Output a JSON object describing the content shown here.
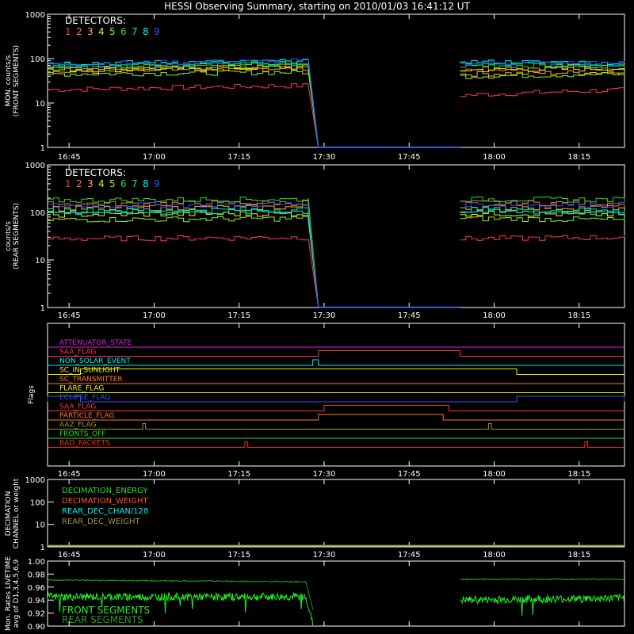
{
  "title": "HESSI Observing Summary, starting on 2010/01/03 16:41:12 UT",
  "x_ticks": [
    "16:45",
    "17:00",
    "17:15",
    "17:30",
    "17:45",
    "18:00",
    "18:15"
  ],
  "colors": {
    "background": "#000000",
    "axes": "#ffffff",
    "detectors": [
      "#ff3355",
      "#ff7722",
      "#ffaa33",
      "#eeee00",
      "#88ee22",
      "#22dd22",
      "#00ee99",
      "#00eeee",
      "#3355ff"
    ]
  },
  "panels": {
    "front": {
      "ylabel_lines": [
        "MON. counts/s",
        "(FRONT SEGMENTS)"
      ],
      "yticks": [
        "1000",
        "100",
        "10",
        "1"
      ],
      "legend_title": "DETECTORS:",
      "legend_numbers": [
        "1",
        "2",
        "3",
        "4",
        "5",
        "6",
        "7",
        "8",
        "9"
      ]
    },
    "rear": {
      "ylabel_lines": [
        "counts/s",
        "(REAR SEGMENTS)"
      ],
      "yticks": [
        "1000",
        "100",
        "10",
        "1"
      ],
      "legend_title": "DETECTORS:",
      "legend_numbers": [
        "1",
        "2",
        "3",
        "4",
        "5",
        "6",
        "7",
        "8",
        "9"
      ]
    },
    "flags": {
      "ylabel": "Flags",
      "items": [
        {
          "label": "ATTENUATOR_STATE",
          "color": "#dd22dd"
        },
        {
          "label": "SAA_FLAG",
          "color": "#ff3355"
        },
        {
          "label": "NON_SOLAR_EVENT",
          "color": "#00eeee"
        },
        {
          "label": "SC_IN_SUNLIGHT",
          "color": "#eeee00"
        },
        {
          "label": "SC_TRANSMITTER",
          "color": "#ff7722"
        },
        {
          "label": "FLARE_FLAG",
          "color": "#eeee00"
        },
        {
          "label": "ECLIPSE_FLAG",
          "color": "#3355ff"
        },
        {
          "label": "SAA_FLAG",
          "color": "#ff3333"
        },
        {
          "label": "PARTICLE_FLAG",
          "color": "#ff7722"
        },
        {
          "label": "AAZ_FLAG",
          "color": "#999933"
        },
        {
          "label": "FRONTS_OFF",
          "color": "#22dd22"
        },
        {
          "label": "BAD_PACKETS",
          "color": "#ff2222"
        }
      ]
    },
    "decimation": {
      "ylabel_lines": [
        "DECIMATION",
        "CHANNEL or weight"
      ],
      "yticks": [
        "1000",
        "100",
        "10",
        "1"
      ],
      "legend": [
        {
          "label": "DECIMATION_ENERGY",
          "color": "#22dd22"
        },
        {
          "label": "DECIMATION_WEIGHT",
          "color": "#ff5522"
        },
        {
          "label": "REAR_DEC_CHAN/128",
          "color": "#00eeee"
        },
        {
          "label": "REAR_DEC_WEIGHT",
          "color": "#999933"
        }
      ]
    },
    "livetime": {
      "ylabel_lines": [
        "Mon. Rates LIVETIME",
        "avg of D1,3,4,5,6,9"
      ],
      "yticks": [
        "1.00",
        "0.98",
        "0.96",
        "0.94",
        "0.92",
        "0.90"
      ],
      "legend": [
        {
          "label": "FRONT SEGMENTS",
          "color": "#22ee22"
        },
        {
          "label": "REAR SEGMENTS",
          "color": "#229922"
        }
      ]
    }
  },
  "chart_data": [
    {
      "type": "line",
      "x": [
        "16:41",
        "17:28",
        "17:29",
        "17:54",
        "18:22"
      ],
      "ylim": [
        1,
        1000
      ],
      "yscale": "log",
      "series": [
        {
          "name": "1",
          "values": [
            20,
            25,
            1,
            15,
            20
          ]
        },
        {
          "name": "2",
          "values": [
            60,
            70,
            1,
            60,
            65
          ]
        },
        {
          "name": "3",
          "values": [
            50,
            60,
            1,
            45,
            50
          ]
        },
        {
          "name": "4",
          "values": [
            55,
            65,
            1,
            55,
            60
          ]
        },
        {
          "name": "5",
          "values": [
            45,
            50,
            1,
            40,
            45
          ]
        },
        {
          "name": "6",
          "values": [
            65,
            75,
            1,
            70,
            70
          ]
        },
        {
          "name": "7",
          "values": [
            70,
            80,
            1,
            75,
            75
          ]
        },
        {
          "name": "8",
          "values": [
            80,
            85,
            1,
            85,
            80
          ]
        },
        {
          "name": "9",
          "values": [
            75,
            90,
            1,
            80,
            80
          ]
        }
      ]
    },
    {
      "type": "line",
      "x": [
        "16:41",
        "17:28",
        "17:29",
        "17:54",
        "18:22"
      ],
      "ylim": [
        1,
        1000
      ],
      "yscale": "log",
      "series": [
        {
          "name": "1",
          "values": [
            28,
            30,
            1,
            28,
            30
          ]
        },
        {
          "name": "2",
          "values": [
            150,
            160,
            1,
            160,
            155
          ]
        },
        {
          "name": "3",
          "values": [
            120,
            130,
            1,
            130,
            125
          ]
        },
        {
          "name": "4",
          "values": [
            90,
            95,
            1,
            95,
            90
          ]
        },
        {
          "name": "5",
          "values": [
            70,
            75,
            1,
            75,
            70
          ]
        },
        {
          "name": "6",
          "values": [
            180,
            190,
            1,
            190,
            185
          ]
        },
        {
          "name": "7",
          "values": [
            110,
            115,
            1,
            115,
            110
          ]
        },
        {
          "name": "8",
          "values": [
            100,
            105,
            1,
            105,
            100
          ]
        },
        {
          "name": "9",
          "values": [
            140,
            150,
            1,
            150,
            145
          ]
        }
      ]
    },
    {
      "type": "line",
      "x_range": [
        "16:41",
        "18:23"
      ],
      "series": [
        {
          "name": "ATTENUATOR_STATE",
          "on": []
        },
        {
          "name": "SAA_FLAG",
          "on": [
            [
              "17:29",
              "17:54"
            ]
          ]
        },
        {
          "name": "NON_SOLAR_EVENT",
          "on": [
            [
              "17:28",
              "17:29"
            ]
          ]
        },
        {
          "name": "SC_IN_SUNLIGHT",
          "on": [
            [
              "16:47",
              "18:04"
            ]
          ]
        },
        {
          "name": "SC_TRANSMITTER",
          "on": []
        },
        {
          "name": "FLARE_FLAG",
          "on": []
        },
        {
          "name": "ECLIPSE_FLAG",
          "on": [
            [
              "16:41",
              "16:47"
            ],
            [
              "18:04",
              "18:23"
            ]
          ]
        },
        {
          "name": "SAA_FLAG",
          "on": [
            [
              "17:30",
              "17:52"
            ]
          ]
        },
        {
          "name": "PARTICLE_FLAG",
          "on": [
            [
              "17:29",
              "17:51"
            ]
          ]
        },
        {
          "name": "AAZ_FLAG",
          "on": [
            [
              "16:58",
              "16:58"
            ],
            [
              "17:59",
              "17:59"
            ]
          ]
        },
        {
          "name": "FRONTS_OFF",
          "on": []
        },
        {
          "name": "BAD_PACKETS",
          "on": [
            [
              "17:16",
              "17:16"
            ],
            [
              "18:16",
              "18:16"
            ]
          ]
        }
      ]
    },
    {
      "type": "line",
      "x_range": [
        "16:41",
        "18:23"
      ],
      "ylim": [
        1,
        1000
      ],
      "yscale": "log",
      "series": [
        {
          "name": "DECIMATION_ENERGY",
          "values": [
            1,
            1
          ]
        },
        {
          "name": "DECIMATION_WEIGHT",
          "values": [
            1,
            1
          ]
        },
        {
          "name": "REAR_DEC_CHAN/128",
          "values": [
            1,
            1
          ]
        },
        {
          "name": "REAR_DEC_WEIGHT",
          "values": [
            1,
            1
          ]
        }
      ]
    },
    {
      "type": "line",
      "x": [
        "16:41",
        "17:28",
        "17:29",
        "17:54",
        "18:22"
      ],
      "ylim": [
        0.9,
        1.0
      ],
      "series": [
        {
          "name": "FRONT SEGMENTS",
          "values": [
            0.945,
            0.945,
            0.9,
            0.94,
            0.943
          ]
        },
        {
          "name": "REAR SEGMENTS",
          "values": [
            0.971,
            0.968,
            0.9,
            0.972,
            0.972
          ]
        }
      ]
    }
  ]
}
